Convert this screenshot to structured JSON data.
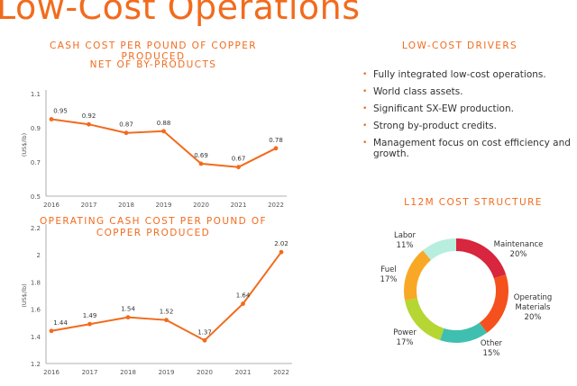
{
  "page": {
    "title": "Low-Cost Operations"
  },
  "drivers": {
    "title": "LOW-COST DRIVERS",
    "items": [
      "Fully integrated low-cost operations.",
      "World class assets.",
      "Significant SX-EW production.",
      "Strong by-product credits.",
      "Management focus on cost efficiency and growth."
    ]
  },
  "colors": {
    "accent": "#f26b1d",
    "line": "#f26b1d",
    "maintenance": "#d7263d",
    "operating_materials": "#f4511e",
    "other": "#3fbfb0",
    "power": "#b5d633",
    "fuel": "#f9a825",
    "labor": "#b8eede"
  },
  "chart_data": [
    {
      "type": "line",
      "title_line1": "CASH COST PER POUND OF COPPER PRODUCED",
      "title_line2": "NET OF BY-PRODUCTS",
      "ylabel": "(US$/lb)",
      "xlabel": "",
      "x": [
        "2016",
        "2017",
        "2018",
        "2019",
        "2020",
        "2021",
        "2022"
      ],
      "values": [
        0.95,
        0.92,
        0.87,
        0.88,
        0.69,
        0.67,
        0.78
      ],
      "data_labels": [
        "0.95",
        "0.92",
        "0.87",
        "0.88",
        "0.69",
        "0.67",
        "0.78"
      ],
      "ylim": [
        0.5,
        1.1
      ],
      "yticks": [
        0.5,
        0.7,
        0.9,
        1.1
      ],
      "ytick_labels": [
        "0.5",
        "0.7",
        "0.9",
        "1.1"
      ],
      "grid": false
    },
    {
      "type": "line",
      "title_line1": "OPERATING CASH COST PER POUND OF",
      "title_line2": "COPPER PRODUCED",
      "ylabel": "(US$/lb)",
      "xlabel": "",
      "x": [
        "2016",
        "2017",
        "2018",
        "2019",
        "2020",
        "2021",
        "2022"
      ],
      "values": [
        1.44,
        1.49,
        1.54,
        1.52,
        1.37,
        1.64,
        2.02
      ],
      "data_labels": [
        "1.44",
        "1.49",
        "1.54",
        "1.52",
        "1.37",
        "1.64",
        "2.02"
      ],
      "ylim": [
        1.2,
        2.2
      ],
      "yticks": [
        1.2,
        1.4,
        1.6,
        1.8,
        2.0,
        2.2
      ],
      "ytick_labels": [
        "1.2",
        "1.4",
        "1.6",
        "1.8",
        "2",
        "2.2"
      ],
      "grid": false
    },
    {
      "type": "pie",
      "title": "L12M COST STRUCTURE",
      "donut": true,
      "categories": [
        "Maintenance",
        "Operating Materials",
        "Other",
        "Power",
        "Fuel",
        "Labor"
      ],
      "values": [
        20,
        20,
        15,
        17,
        17,
        11
      ],
      "value_labels": [
        "20%",
        "20%",
        "15%",
        "17%",
        "17%",
        "11%"
      ]
    }
  ]
}
